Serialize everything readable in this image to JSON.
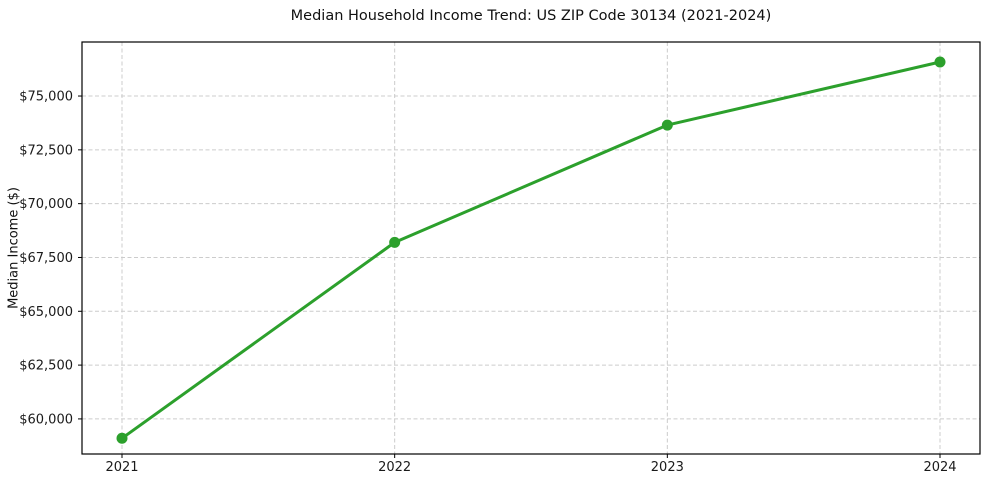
{
  "chart_data": {
    "type": "line",
    "title": "Median Household Income Trend: US ZIP Code 30134 (2021-2024)",
    "xlabel": "",
    "ylabel": "Median Income ($)",
    "categories": [
      "2021",
      "2022",
      "2023",
      "2024"
    ],
    "values": [
      59100,
      68200,
      73650,
      76580
    ],
    "value_labels": [
      "$59,100",
      "$68,200",
      "$73,650",
      "$76,580"
    ],
    "ylim": [
      58370,
      77510
    ],
    "yticks": [
      {
        "value": 60000,
        "label": "$60,000"
      },
      {
        "value": 62500,
        "label": "$62,500"
      },
      {
        "value": 65000,
        "label": "$65,000"
      },
      {
        "value": 67500,
        "label": "$67,500"
      },
      {
        "value": 70000,
        "label": "$70,000"
      },
      {
        "value": 72500,
        "label": "$72,500"
      },
      {
        "value": 75000,
        "label": "$75,000"
      }
    ],
    "grid": "both-dashed",
    "legend": false,
    "colors": {
      "line": "#2ca02c",
      "marker": "#2ca02c",
      "grid": "#cccccc",
      "axis": "#000000",
      "text": "#1a1a1a",
      "background": "#ffffff"
    }
  }
}
